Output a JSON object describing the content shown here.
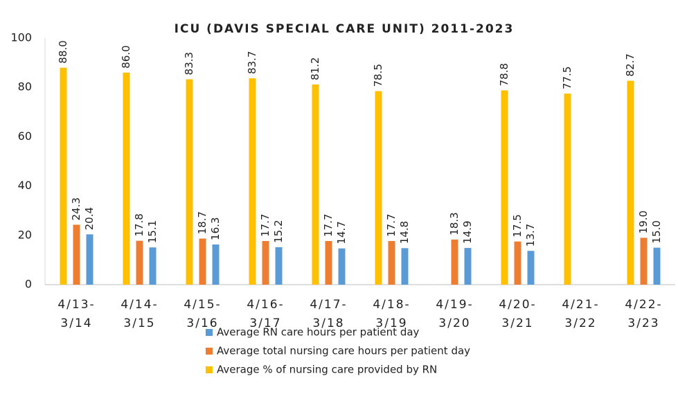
{
  "chart_data": {
    "type": "bar",
    "title": "ICU (DAVIS SPECIAL CARE UNIT) 2011-2023",
    "categories": [
      [
        "4/13-",
        "3/14"
      ],
      [
        "4/14-",
        "3/15"
      ],
      [
        "4/15-",
        "3/16"
      ],
      [
        "4/16-",
        "3/17"
      ],
      [
        "4/17-",
        "3/18"
      ],
      [
        "4/18-",
        "3/19"
      ],
      [
        "4/19-",
        "3/20"
      ],
      [
        "4/20-",
        "3/21"
      ],
      [
        "4/21-",
        "3/22"
      ],
      [
        "4/22-",
        "3/23"
      ]
    ],
    "series": [
      {
        "name": "Average % of nursing care provided by RN",
        "color": "#ffc000",
        "values": [
          88,
          86,
          83.3,
          83.7,
          81.2,
          78.5,
          null,
          78.8,
          77.5,
          82.7
        ],
        "value_labels": [
          "88.0",
          "86.0",
          "83.3",
          "83.7",
          "81.2",
          "78.5",
          null,
          "78.8",
          "77.5",
          "82.7"
        ]
      },
      {
        "name": "Average total nursing care hours per patient day",
        "color": "#ed7d31",
        "values": [
          24.3,
          17.8,
          18.7,
          17.7,
          17.7,
          17.7,
          18.3,
          17.5,
          null,
          19
        ],
        "value_labels": [
          "24.3",
          "17.8",
          "18.7",
          "17.7",
          "17.7",
          "17.7",
          "18.3",
          "17.5",
          null,
          "19.0"
        ]
      },
      {
        "name": "Average RN care hours per patient day",
        "color": "#5b9bd5",
        "values": [
          20.4,
          15.1,
          16.3,
          15.2,
          14.7,
          14.8,
          14.9,
          13.7,
          null,
          15
        ],
        "value_labels": [
          "20.4",
          "15.1",
          "16.3",
          "15.2",
          "14.7",
          "14.8",
          "14.9",
          "13.7",
          null,
          "15.0"
        ]
      }
    ],
    "legend_order": [
      2,
      1,
      0
    ],
    "ylim": [
      0,
      100
    ],
    "yticks": [
      0,
      20,
      40,
      60,
      80,
      100
    ],
    "grid": false
  }
}
